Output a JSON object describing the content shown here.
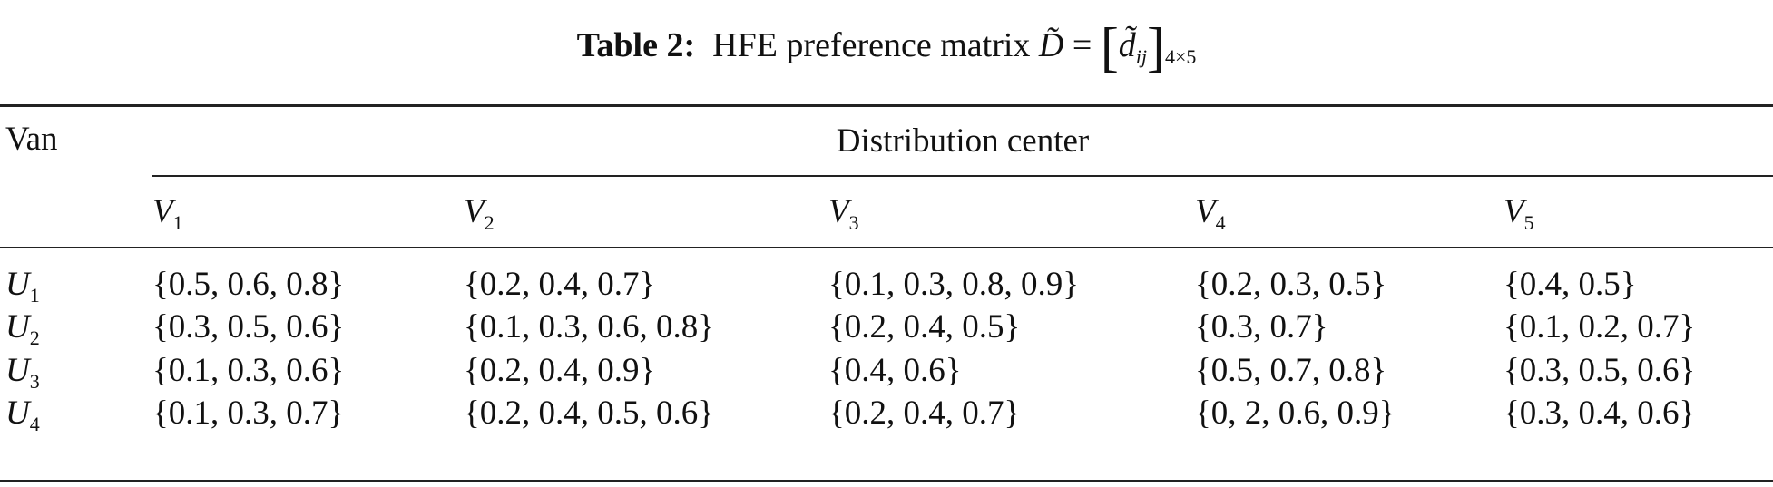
{
  "caption": {
    "label": "Table 2:",
    "text": "HFE preference matrix",
    "matrix_symbol": "D̃",
    "equals": "=",
    "element_symbol": "d̃",
    "element_subscript": "ij",
    "dimension": "4×5"
  },
  "table": {
    "row_header": "Van",
    "group_header": "Distribution center",
    "columns": [
      {
        "symbol": "V",
        "sub": "1"
      },
      {
        "symbol": "V",
        "sub": "2"
      },
      {
        "symbol": "V",
        "sub": "3"
      },
      {
        "symbol": "V",
        "sub": "4"
      },
      {
        "symbol": "V",
        "sub": "5"
      }
    ],
    "rows": [
      {
        "symbol": "U",
        "sub": "1",
        "cells": [
          "{0.5, 0.6, 0.8}",
          "{0.2, 0.4, 0.7}",
          "{0.1, 0.3, 0.8, 0.9}",
          "{0.2, 0.3, 0.5}",
          "{0.4, 0.5}"
        ]
      },
      {
        "symbol": "U",
        "sub": "2",
        "cells": [
          "{0.3, 0.5, 0.6}",
          "{0.1, 0.3, 0.6, 0.8}",
          "{0.2, 0.4, 0.5}",
          "{0.3, 0.7}",
          "{0.1, 0.2, 0.7}"
        ]
      },
      {
        "symbol": "U",
        "sub": "3",
        "cells": [
          "{0.1, 0.3, 0.6}",
          "{0.2, 0.4, 0.9}",
          "{0.4, 0.6}",
          "{0.5, 0.7, 0.8}",
          "{0.3, 0.5, 0.6}"
        ]
      },
      {
        "symbol": "U",
        "sub": "4",
        "cells": [
          "{0.1, 0.3, 0.7}",
          "{0.2, 0.4, 0.5, 0.6}",
          "{0.2, 0.4, 0.7}",
          "{0, 2, 0.6, 0.9}",
          "{0.3, 0.4, 0.6}"
        ]
      }
    ]
  }
}
